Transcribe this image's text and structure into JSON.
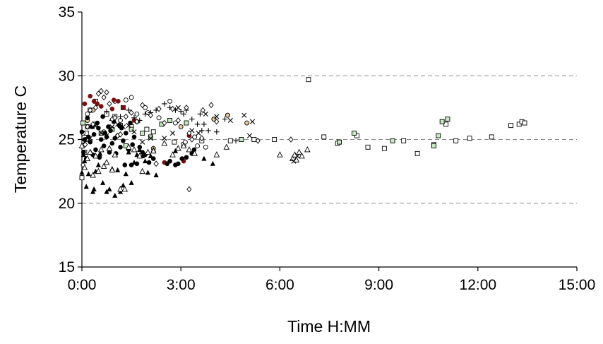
{
  "chart_data": {
    "type": "scatter",
    "title": "",
    "xlabel": "Time H:MM",
    "ylabel": "Temperature C",
    "xlim_minutes": [
      0,
      900
    ],
    "ylim": [
      15,
      35
    ],
    "x_tick_labels": [
      "0:00",
      "3:00",
      "6:00",
      "9:00",
      "12:00",
      "15:00"
    ],
    "y_tick_labels": [
      "15",
      "20",
      "25",
      "30",
      "35"
    ],
    "gridlines": "dashed horizontal at 20, 25, 30",
    "legend": "none",
    "colors": {
      "dark_red": "#7a1010",
      "light_green": "#c7e8c0",
      "tan": "#e8c79a",
      "black": "#000000",
      "grid": "#8c8c8c"
    },
    "series": [
      {
        "marker": "open-square",
        "color": "#000000",
        "points": [
          [
            0,
            22
          ],
          [
            5,
            24
          ],
          [
            8,
            25.5
          ],
          [
            10,
            26
          ],
          [
            15,
            27.3
          ],
          [
            25,
            28
          ],
          [
            45,
            27
          ],
          [
            60,
            26.8
          ],
          [
            75,
            27.5
          ],
          [
            90,
            26
          ],
          [
            118,
            25.8
          ],
          [
            130,
            25.6
          ],
          [
            168,
            24.8
          ],
          [
            185,
            24.6
          ],
          [
            218,
            24.9
          ],
          [
            270,
            24.9
          ],
          [
            313,
            25
          ],
          [
            350,
            25
          ],
          [
            412,
            29.7
          ],
          [
            440,
            25.2
          ],
          [
            465,
            24.7
          ],
          [
            500,
            25.3
          ],
          [
            520,
            24.4
          ],
          [
            550,
            24.3
          ],
          [
            585,
            24.9
          ],
          [
            610,
            23.9
          ],
          [
            640,
            24.6
          ],
          [
            662,
            26.2
          ],
          [
            680,
            24.9
          ],
          [
            705,
            25.1
          ],
          [
            745,
            25.2
          ],
          [
            780,
            26.1
          ],
          [
            795,
            26.2
          ],
          [
            800,
            26.4
          ],
          [
            805,
            26.3
          ]
        ]
      },
      {
        "marker": "green-square",
        "color": "#c7e8c0",
        "points": [
          [
            2,
            26.3
          ],
          [
            10,
            25
          ],
          [
            25,
            26.2
          ],
          [
            35,
            25.5
          ],
          [
            55,
            25.8
          ],
          [
            70,
            26.1
          ],
          [
            80,
            24.5
          ],
          [
            90,
            25.8
          ],
          [
            110,
            25.5
          ],
          [
            125,
            25.2
          ],
          [
            145,
            26.2
          ],
          [
            160,
            26.5
          ],
          [
            190,
            26.3
          ],
          [
            290,
            25
          ],
          [
            468,
            24.8
          ],
          [
            495,
            25.5
          ],
          [
            565,
            24.9
          ],
          [
            640,
            24.5
          ],
          [
            648,
            25.3
          ],
          [
            655,
            26.4
          ],
          [
            665,
            26.6
          ]
        ]
      },
      {
        "marker": "open-circle",
        "color": "#000000",
        "points": [
          [
            2,
            25.5
          ],
          [
            10,
            27
          ],
          [
            20,
            26
          ],
          [
            40,
            25.6
          ],
          [
            60,
            28
          ],
          [
            70,
            26.5
          ],
          [
            80,
            28.1
          ],
          [
            90,
            28.3
          ],
          [
            100,
            27
          ],
          [
            115,
            27.5
          ],
          [
            120,
            27.1
          ],
          [
            140,
            26.7
          ],
          [
            160,
            28
          ],
          [
            170,
            26.3
          ],
          [
            188,
            24.8
          ],
          [
            205,
            25.2
          ],
          [
            210,
            24.5
          ],
          [
            225,
            24.4
          ],
          [
            240,
            26.6
          ],
          [
            265,
            26.9
          ]
        ]
      },
      {
        "marker": "tan-circle",
        "color": "#e8c79a",
        "points": [
          [
            10,
            26.5
          ],
          [
            20,
            27.3
          ],
          [
            100,
            26.4
          ],
          [
            130,
            24.3
          ],
          [
            180,
            26
          ],
          [
            240,
            26.6
          ],
          [
            265,
            26.9
          ],
          [
            300,
            26.3
          ]
        ]
      },
      {
        "marker": "dark-red-dot",
        "color": "#7a1010",
        "points": [
          [
            5,
            27.8
          ],
          [
            15,
            28.4
          ],
          [
            22,
            28
          ],
          [
            28,
            27.8
          ],
          [
            35,
            27.6
          ],
          [
            55,
            27.4
          ],
          [
            58,
            28.1
          ],
          [
            66,
            28
          ],
          [
            75,
            27.5
          ],
          [
            95,
            26.5
          ],
          [
            150,
            23.2
          ],
          [
            185,
            23.3
          ],
          [
            195,
            25.3
          ]
        ]
      },
      {
        "marker": "black-dot",
        "color": "#000000",
        "points": [
          [
            0,
            25.6
          ],
          [
            3,
            24
          ],
          [
            5,
            25
          ],
          [
            8,
            23.5
          ],
          [
            10,
            26.7
          ],
          [
            12,
            25.2
          ],
          [
            15,
            24.8
          ],
          [
            18,
            26
          ],
          [
            20,
            23.8
          ],
          [
            22,
            25.4
          ],
          [
            25,
            24.2
          ],
          [
            28,
            26.3
          ],
          [
            30,
            25.9
          ],
          [
            32,
            23.6
          ],
          [
            35,
            25
          ],
          [
            38,
            26.8
          ],
          [
            40,
            24.5
          ],
          [
            42,
            25.5
          ],
          [
            45,
            25.2
          ],
          [
            48,
            26
          ],
          [
            50,
            24
          ],
          [
            52,
            25.7
          ],
          [
            55,
            24.7
          ],
          [
            58,
            26.4
          ],
          [
            60,
            25.1
          ],
          [
            62,
            23.9
          ],
          [
            65,
            25.3
          ],
          [
            68,
            26.1
          ],
          [
            70,
            24.4
          ],
          [
            72,
            25.9
          ],
          [
            75,
            24.9
          ],
          [
            78,
            23
          ],
          [
            80,
            25.5
          ],
          [
            85,
            24.2
          ],
          [
            88,
            26.3
          ],
          [
            90,
            23
          ],
          [
            92,
            24.6
          ],
          [
            95,
            25.2
          ],
          [
            100,
            23.1
          ],
          [
            105,
            24.4
          ],
          [
            110,
            24
          ],
          [
            115,
            23.8
          ],
          [
            122,
            23.2
          ],
          [
            130,
            23.5
          ],
          [
            155,
            23.1
          ],
          [
            160,
            23.3
          ],
          [
            170,
            23
          ],
          [
            175,
            23.1
          ],
          [
            182,
            23.5
          ],
          [
            190,
            23.6
          ],
          [
            200,
            23.9
          ],
          [
            204,
            24.2
          ]
        ]
      },
      {
        "marker": "black-triangle",
        "color": "#000000",
        "points": [
          [
            0,
            22.4
          ],
          [
            3,
            23.8
          ],
          [
            5,
            23.3
          ],
          [
            8,
            21.3
          ],
          [
            12,
            22.3
          ],
          [
            16,
            24
          ],
          [
            20,
            20.9
          ],
          [
            22,
            21.1
          ],
          [
            25,
            22.5
          ],
          [
            30,
            23
          ],
          [
            33,
            23.9
          ],
          [
            38,
            21.6
          ],
          [
            45,
            20.9
          ],
          [
            50,
            21.1
          ],
          [
            55,
            22.7
          ],
          [
            60,
            20.6
          ],
          [
            65,
            22.6
          ],
          [
            70,
            20.9
          ],
          [
            75,
            21.4
          ],
          [
            80,
            22.3
          ],
          [
            85,
            24
          ],
          [
            90,
            21.6
          ],
          [
            95,
            23.2
          ],
          [
            100,
            23.8
          ],
          [
            105,
            24.2
          ],
          [
            110,
            23.7
          ],
          [
            115,
            23.3
          ],
          [
            120,
            22.4
          ],
          [
            125,
            23.7
          ],
          [
            130,
            24.2
          ],
          [
            135,
            22.2
          ],
          [
            170,
            24.1
          ],
          [
            222,
            23.5
          ],
          [
            238,
            23.1
          ]
        ]
      },
      {
        "marker": "open-triangle",
        "color": "#000000",
        "points": [
          [
            0,
            24.5
          ],
          [
            5,
            22.8
          ],
          [
            10,
            23.5
          ],
          [
            15,
            24
          ],
          [
            20,
            22.2
          ],
          [
            25,
            23.7
          ],
          [
            30,
            22.5
          ],
          [
            35,
            24.2
          ],
          [
            40,
            22.9
          ],
          [
            45,
            23.2
          ],
          [
            50,
            24.3
          ],
          [
            55,
            22.6
          ],
          [
            60,
            23.8
          ],
          [
            70,
            21.1
          ],
          [
            78,
            21.1
          ],
          [
            85,
            24.4
          ],
          [
            95,
            24.2
          ],
          [
            105,
            23.7
          ],
          [
            110,
            22.5
          ],
          [
            120,
            24
          ],
          [
            130,
            24.1
          ],
          [
            150,
            24.7
          ],
          [
            165,
            23.8
          ],
          [
            175,
            24.3
          ],
          [
            185,
            24.5
          ],
          [
            195,
            24.2
          ],
          [
            205,
            23.9
          ],
          [
            245,
            23.8
          ],
          [
            263,
            24.4
          ],
          [
            360,
            23.8
          ],
          [
            383,
            23.5
          ],
          [
            387,
            23.8
          ],
          [
            390,
            23.4
          ],
          [
            395,
            24
          ],
          [
            400,
            23.7
          ],
          [
            410,
            24.2
          ]
        ]
      },
      {
        "marker": "cross",
        "color": "#000000",
        "points": [
          [
            5,
            24.8
          ],
          [
            15,
            25.1
          ],
          [
            25,
            26.1
          ],
          [
            35,
            25.5
          ],
          [
            45,
            25.3
          ],
          [
            55,
            26
          ],
          [
            65,
            26.2
          ],
          [
            75,
            26
          ],
          [
            85,
            26.1
          ],
          [
            95,
            25.6
          ],
          [
            110,
            24.8
          ],
          [
            125,
            25.1
          ],
          [
            150,
            25.1
          ],
          [
            165,
            25.5
          ],
          [
            175,
            27.5
          ],
          [
            200,
            25.7
          ],
          [
            212,
            25.5
          ],
          [
            225,
            27
          ],
          [
            245,
            26.8
          ],
          [
            270,
            26.5
          ],
          [
            295,
            26.9
          ],
          [
            305,
            25.3
          ],
          [
            310,
            26.4
          ],
          [
            385,
            23.3
          ],
          [
            392,
            23.7
          ]
        ]
      },
      {
        "marker": "plus",
        "color": "#000000",
        "points": [
          [
            45,
            27.2
          ],
          [
            55,
            26.5
          ],
          [
            70,
            26.8
          ],
          [
            85,
            27.3
          ],
          [
            95,
            26.7
          ],
          [
            105,
            26.5
          ],
          [
            115,
            27
          ],
          [
            125,
            27.1
          ],
          [
            135,
            27.3
          ],
          [
            150,
            27.8
          ],
          [
            160,
            27.5
          ],
          [
            170,
            27.3
          ],
          [
            180,
            27.2
          ],
          [
            185,
            27
          ],
          [
            190,
            27.3
          ],
          [
            200,
            26.6
          ],
          [
            210,
            26.2
          ],
          [
            215,
            27
          ],
          [
            218,
            25.7
          ],
          [
            222,
            26.2
          ],
          [
            230,
            25.7
          ],
          [
            245,
            25.6
          ],
          [
            260,
            26.6
          ],
          [
            280,
            24.9
          ]
        ]
      },
      {
        "marker": "open-diamond",
        "color": "#000000",
        "points": [
          [
            2,
            23
          ],
          [
            6,
            24.6
          ],
          [
            10,
            26
          ],
          [
            15,
            27.3
          ],
          [
            20,
            26.2
          ],
          [
            25,
            27.5
          ],
          [
            30,
            28.6
          ],
          [
            35,
            28.8
          ],
          [
            40,
            28.3
          ],
          [
            45,
            28.7
          ],
          [
            50,
            27.8
          ],
          [
            55,
            26.6
          ],
          [
            60,
            26.7
          ],
          [
            65,
            25.3
          ],
          [
            70,
            25.4
          ],
          [
            80,
            26.8
          ],
          [
            90,
            27.1
          ],
          [
            100,
            26.4
          ],
          [
            110,
            27.7
          ],
          [
            125,
            26.9
          ],
          [
            140,
            27.4
          ],
          [
            150,
            26.3
          ],
          [
            165,
            27.4
          ],
          [
            175,
            26.5
          ],
          [
            190,
            27.5
          ],
          [
            195,
            25.5
          ],
          [
            200,
            25
          ],
          [
            220,
            27.3
          ],
          [
            235,
            27.7
          ],
          [
            245,
            26.4
          ],
          [
            320,
            24.9
          ],
          [
            380,
            25
          ],
          [
            135,
            23.1
          ],
          [
            195,
            21.1
          ],
          [
            218,
            25.1
          ]
        ]
      }
    ]
  }
}
